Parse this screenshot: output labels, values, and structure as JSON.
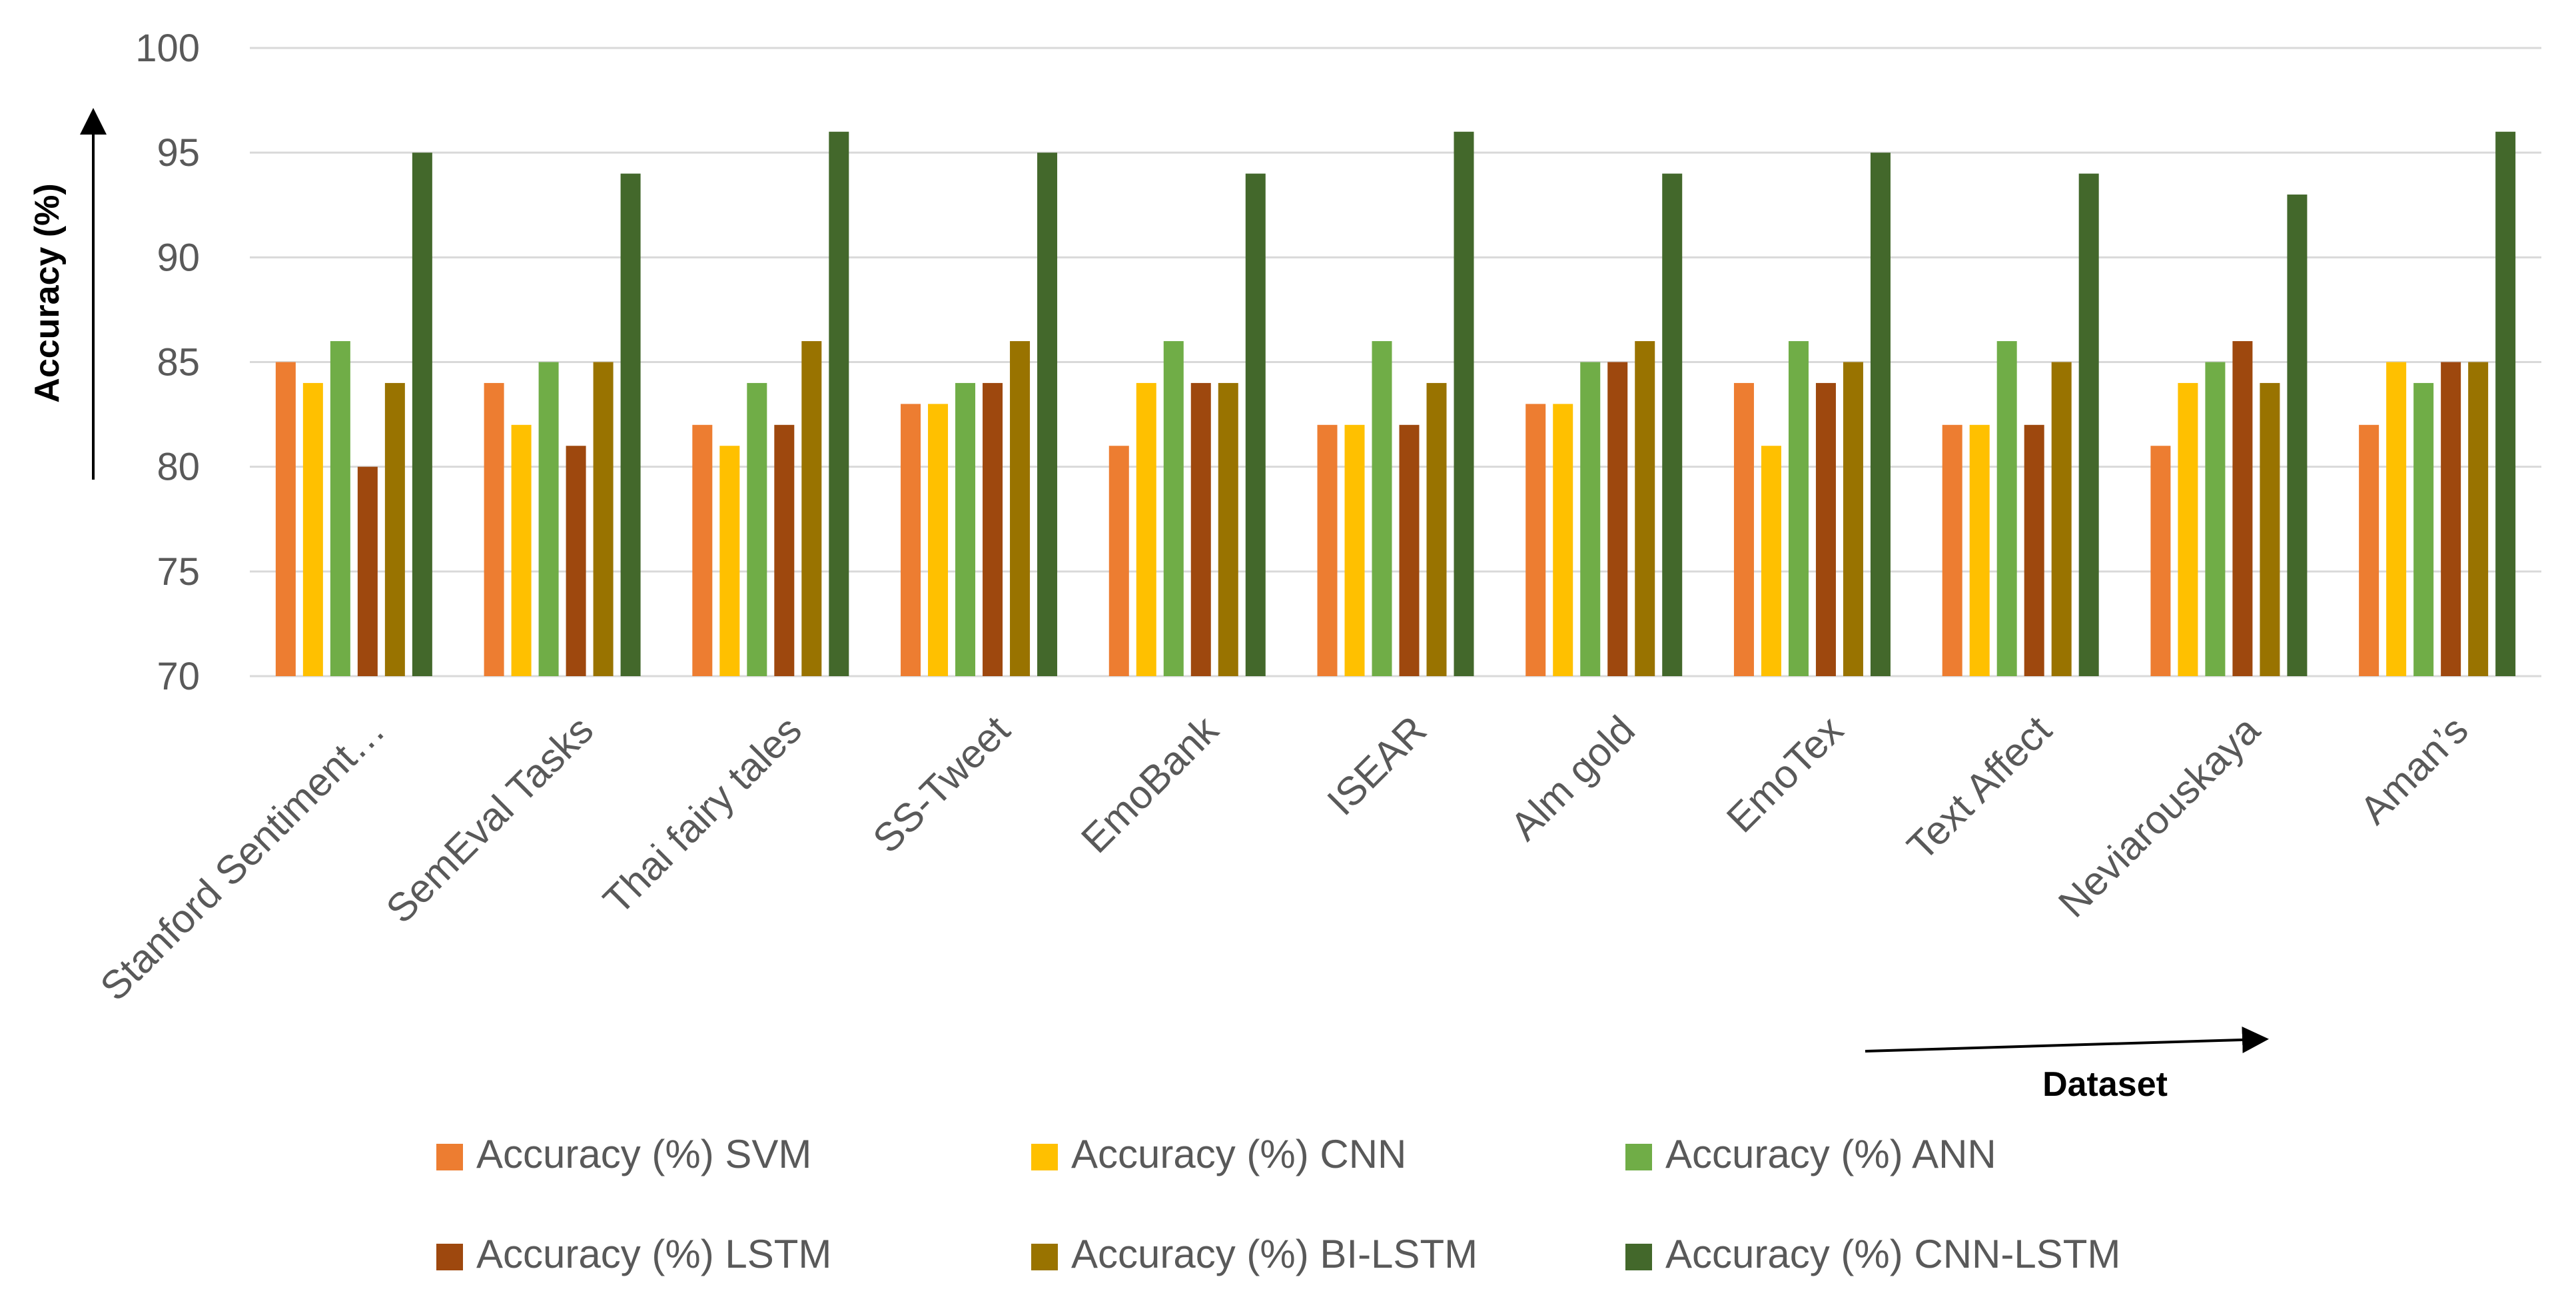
{
  "chart_data": {
    "type": "bar",
    "title": "",
    "xlabel": "Dataset",
    "ylabel": "Accuracy (%)",
    "ylim": [
      70,
      100
    ],
    "yticks": [
      70,
      75,
      80,
      85,
      90,
      95,
      100
    ],
    "grid": true,
    "legend_position": "bottom",
    "categories": [
      "Stanford Sentiment…",
      "SemEval Tasks",
      "Thai fairy tales",
      "SS-Tweet",
      "EmoBank",
      "ISEAR",
      "Alm gold",
      "EmoTex",
      "Text Affect",
      "Neviarouskaya",
      "Aman’s"
    ],
    "series": [
      {
        "name": "Accuracy (%) SVM",
        "color": "#ED7D31",
        "values": [
          85,
          84,
          82,
          83,
          81,
          82,
          83,
          84,
          82,
          81,
          82
        ]
      },
      {
        "name": "Accuracy (%) CNN",
        "color": "#FFC000",
        "values": [
          84,
          82,
          81,
          83,
          84,
          82,
          83,
          81,
          82,
          84,
          85
        ]
      },
      {
        "name": "Accuracy (%) ANN",
        "color": "#70AD47",
        "values": [
          86,
          85,
          84,
          84,
          86,
          86,
          85,
          86,
          86,
          85,
          84
        ]
      },
      {
        "name": "Accuracy (%) LSTM",
        "color": "#9E480E",
        "values": [
          80,
          81,
          82,
          84,
          84,
          82,
          85,
          84,
          82,
          86,
          85
        ]
      },
      {
        "name": "Accuracy (%) BI-LSTM",
        "color": "#997300",
        "values": [
          84,
          85,
          86,
          86,
          84,
          84,
          86,
          85,
          85,
          84,
          85
        ]
      },
      {
        "name": "Accuracy (%) CNN-LSTM",
        "color": "#43682B",
        "values": [
          95,
          94,
          96,
          95,
          94,
          96,
          94,
          95,
          94,
          93,
          96
        ]
      }
    ]
  }
}
